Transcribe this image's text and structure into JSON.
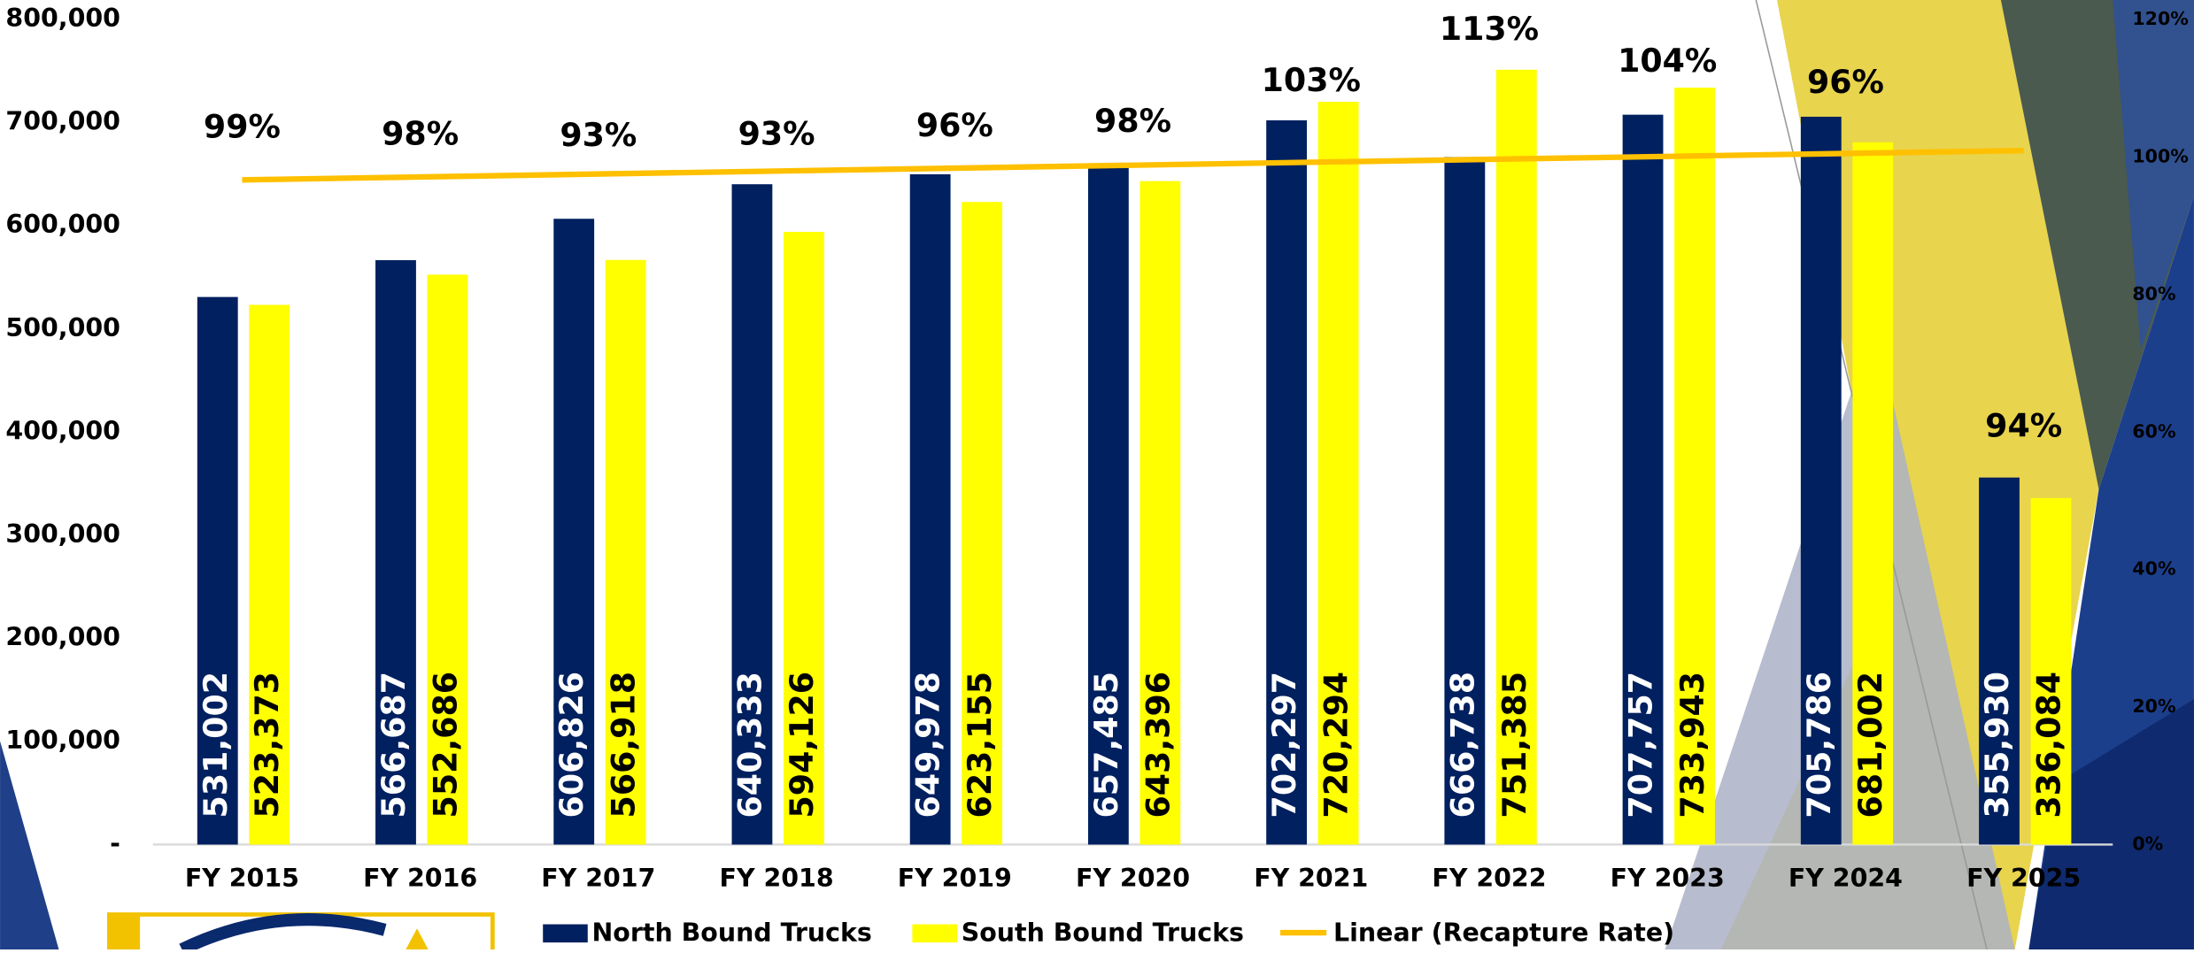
{
  "chart_data": {
    "type": "bar",
    "categories": [
      "FY 2015",
      "FY 2016",
      "FY 2017",
      "FY 2018",
      "FY 2019",
      "FY 2020",
      "FY 2021",
      "FY 2022",
      "FY 2023",
      "FY 2024",
      "FY 2025"
    ],
    "series": [
      {
        "name": "North Bound Trucks",
        "color": "#002060",
        "values": [
          531002,
          566687,
          606826,
          640333,
          649978,
          657485,
          702297,
          666738,
          707757,
          705786,
          355930
        ],
        "value_labels": [
          "531,002",
          "566,687",
          "606,826",
          "640,333",
          "649,978",
          "657,485",
          "702,297",
          "666,738",
          "707,757",
          "705,786",
          "355,930"
        ]
      },
      {
        "name": "South Bound Trucks",
        "color": "#ffff00",
        "values": [
          523373,
          552686,
          566918,
          594126,
          623155,
          643396,
          720294,
          751385,
          733943,
          681002,
          336084
        ],
        "value_labels": [
          "523,373",
          "552,686",
          "566,918",
          "594,126",
          "623,155",
          "643,396",
          "720,294",
          "751,385",
          "733,943",
          "681,002",
          "336,084"
        ]
      }
    ],
    "recapture_rate": {
      "axis": "y2",
      "values": [
        99,
        98,
        93,
        93,
        96,
        98,
        103,
        113,
        104,
        96,
        94
      ],
      "value_labels": [
        "99%",
        "98%",
        "93%",
        "93%",
        "96%",
        "98%",
        "103%",
        "113%",
        "104%",
        "96%",
        "94%"
      ]
    },
    "trendline": {
      "name": "Linear (Recapture Rate)",
      "color": "#ffc000"
    },
    "ylim": [
      0,
      800000
    ],
    "yticks": [
      {
        "value": 0,
        "label": "-"
      },
      {
        "value": 100000,
        "label": "100,000"
      },
      {
        "value": 200000,
        "label": "200,000"
      },
      {
        "value": 300000,
        "label": "300,000"
      },
      {
        "value": 400000,
        "label": "400,000"
      },
      {
        "value": 500000,
        "label": "500,000"
      },
      {
        "value": 600000,
        "label": "600,000"
      },
      {
        "value": 700000,
        "label": "700,000"
      },
      {
        "value": 800000,
        "label": "800,000"
      }
    ],
    "y2lim": [
      0,
      120
    ],
    "y2ticks": [
      {
        "value": 0,
        "label": "0%"
      },
      {
        "value": 20,
        "label": "20%"
      },
      {
        "value": 40,
        "label": "40%"
      },
      {
        "value": 60,
        "label": "60%"
      },
      {
        "value": 80,
        "label": "80%"
      },
      {
        "value": 100,
        "label": "100%"
      },
      {
        "value": 120,
        "label": "120%"
      }
    ],
    "legend": "bottom"
  }
}
